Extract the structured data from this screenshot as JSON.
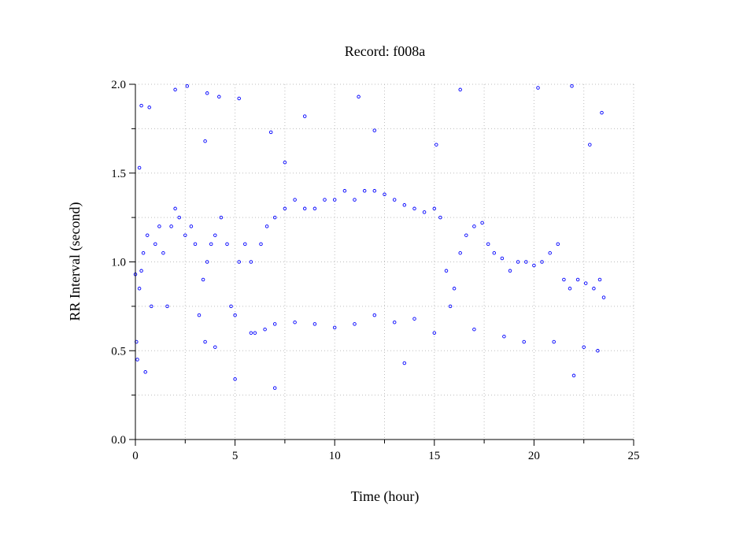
{
  "chart_data": {
    "type": "scatter",
    "title": "Record:  f008a",
    "xlabel": "Time (hour)",
    "ylabel": "RR Interval (second)",
    "xlim": [
      0,
      25
    ],
    "ylim": [
      0.0,
      2.0
    ],
    "x_ticks": [
      0,
      5,
      10,
      15,
      20,
      25
    ],
    "x_tick_labels": [
      "0",
      "5",
      "10",
      "15",
      "20",
      "25"
    ],
    "y_ticks": [
      0.0,
      0.5,
      1.0,
      1.5,
      2.0
    ],
    "y_tick_labels": [
      "0.0",
      "0.5",
      "1.0",
      "1.5",
      "2.0"
    ],
    "grid": true,
    "marker_color": "#0000ff",
    "series": [
      {
        "values": [
          [
            0.0,
            0.93
          ],
          [
            0.05,
            0.55
          ],
          [
            0.1,
            0.45
          ],
          [
            0.2,
            0.85
          ],
          [
            0.3,
            0.95
          ],
          [
            0.4,
            1.05
          ],
          [
            0.6,
            1.15
          ],
          [
            0.8,
            0.75
          ],
          [
            1.0,
            1.1
          ],
          [
            1.2,
            1.2
          ],
          [
            1.4,
            1.05
          ],
          [
            1.6,
            0.75
          ],
          [
            1.8,
            1.2
          ],
          [
            2.0,
            1.3
          ],
          [
            2.2,
            1.25
          ],
          [
            2.5,
            1.15
          ],
          [
            2.8,
            1.2
          ],
          [
            3.0,
            1.1
          ],
          [
            3.2,
            0.7
          ],
          [
            3.4,
            0.9
          ],
          [
            3.6,
            1.0
          ],
          [
            3.8,
            1.1
          ],
          [
            4.0,
            1.15
          ],
          [
            4.3,
            1.25
          ],
          [
            4.6,
            1.1
          ],
          [
            4.8,
            0.75
          ],
          [
            5.0,
            0.7
          ],
          [
            5.2,
            1.0
          ],
          [
            5.5,
            1.1
          ],
          [
            5.8,
            1.0
          ],
          [
            6.0,
            0.6
          ],
          [
            6.3,
            1.1
          ],
          [
            6.6,
            1.2
          ],
          [
            7.0,
            1.25
          ],
          [
            7.5,
            1.3
          ],
          [
            8.0,
            1.35
          ],
          [
            8.5,
            1.3
          ],
          [
            9.0,
            1.3
          ],
          [
            9.5,
            1.35
          ],
          [
            10.0,
            1.35
          ],
          [
            10.5,
            1.4
          ],
          [
            11.0,
            1.35
          ],
          [
            11.5,
            1.4
          ],
          [
            12.0,
            1.4
          ],
          [
            12.5,
            1.38
          ],
          [
            13.0,
            1.35
          ],
          [
            13.5,
            1.32
          ],
          [
            14.0,
            1.3
          ],
          [
            14.5,
            1.28
          ],
          [
            15.0,
            1.3
          ],
          [
            15.3,
            1.25
          ],
          [
            15.6,
            0.95
          ],
          [
            15.8,
            0.75
          ],
          [
            16.0,
            0.85
          ],
          [
            16.3,
            1.05
          ],
          [
            16.6,
            1.15
          ],
          [
            17.0,
            1.2
          ],
          [
            17.4,
            1.22
          ],
          [
            17.7,
            1.1
          ],
          [
            18.0,
            1.05
          ],
          [
            18.4,
            1.02
          ],
          [
            18.8,
            0.95
          ],
          [
            19.2,
            1.0
          ],
          [
            19.6,
            1.0
          ],
          [
            20.0,
            0.98
          ],
          [
            20.4,
            1.0
          ],
          [
            20.8,
            1.05
          ],
          [
            21.2,
            1.1
          ],
          [
            21.5,
            0.9
          ],
          [
            21.8,
            0.85
          ],
          [
            22.2,
            0.9
          ],
          [
            22.6,
            0.88
          ],
          [
            23.0,
            0.85
          ],
          [
            23.3,
            0.9
          ],
          [
            23.5,
            0.8
          ],
          [
            3.5,
            0.55
          ],
          [
            4.0,
            0.52
          ],
          [
            5.8,
            0.6
          ],
          [
            6.5,
            0.62
          ],
          [
            7.0,
            0.65
          ],
          [
            8.0,
            0.66
          ],
          [
            9.0,
            0.65
          ],
          [
            10.0,
            0.63
          ],
          [
            11.0,
            0.65
          ],
          [
            12.0,
            0.7
          ],
          [
            13.0,
            0.66
          ],
          [
            14.0,
            0.68
          ],
          [
            15.0,
            0.6
          ],
          [
            17.0,
            0.62
          ],
          [
            18.5,
            0.58
          ],
          [
            19.5,
            0.55
          ],
          [
            21.0,
            0.55
          ],
          [
            22.5,
            0.52
          ],
          [
            23.2,
            0.5
          ],
          [
            0.3,
            1.88
          ],
          [
            0.7,
            1.87
          ],
          [
            2.0,
            1.97
          ],
          [
            2.6,
            1.99
          ],
          [
            3.6,
            1.95
          ],
          [
            4.2,
            1.93
          ],
          [
            5.2,
            1.92
          ],
          [
            8.5,
            1.82
          ],
          [
            11.2,
            1.93
          ],
          [
            16.3,
            1.97
          ],
          [
            20.2,
            1.98
          ],
          [
            21.9,
            1.99
          ],
          [
            23.4,
            1.84
          ],
          [
            0.2,
            1.53
          ],
          [
            3.5,
            1.68
          ],
          [
            6.8,
            1.73
          ],
          [
            7.5,
            1.56
          ],
          [
            12.0,
            1.74
          ],
          [
            15.1,
            1.66
          ],
          [
            22.8,
            1.66
          ],
          [
            0.5,
            0.38
          ],
          [
            5.0,
            0.34
          ],
          [
            7.0,
            0.29
          ],
          [
            13.5,
            0.43
          ],
          [
            22.0,
            0.36
          ]
        ]
      }
    ]
  }
}
